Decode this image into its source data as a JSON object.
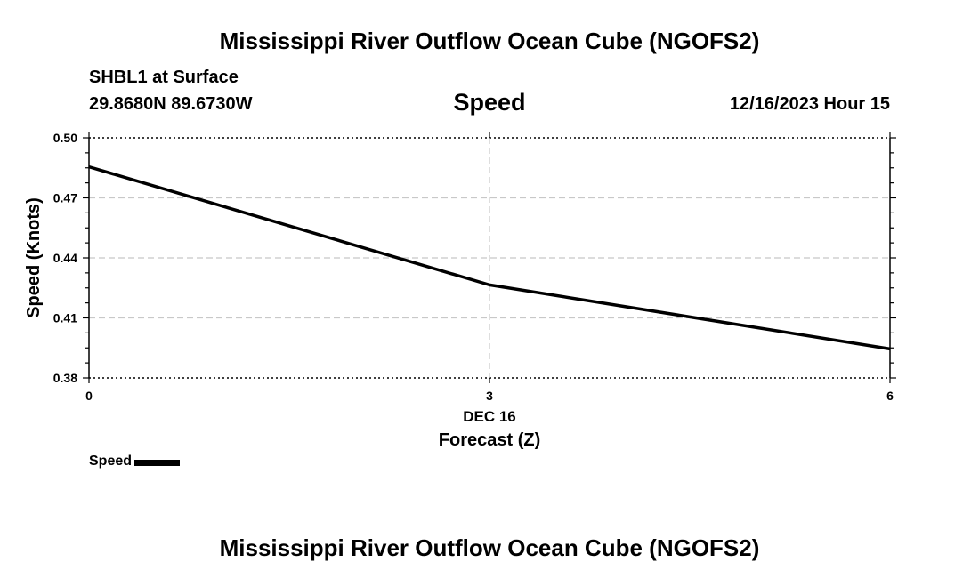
{
  "header": {
    "title": "Mississippi River Outflow Ocean Cube (NGOFS2)",
    "station": "SHBL1 at Surface",
    "coordinates": "29.8680N  89.6730W",
    "subtitle": "Speed",
    "datetime": "12/16/2023 Hour 15"
  },
  "footer": {
    "title": "Mississippi River Outflow Ocean Cube (NGOFS2)"
  },
  "legend": {
    "label": "Speed",
    "color": "#000000"
  },
  "chart_data": {
    "type": "line",
    "ylabel": "Speed (Knots)",
    "xlabel": "Forecast (Z)",
    "x_date_label": "DEC 16",
    "x": [
      0,
      3,
      6
    ],
    "x_tick_labels": [
      "0",
      "3",
      "6"
    ],
    "xlim": [
      0,
      6
    ],
    "ylim": [
      0.38,
      0.5
    ],
    "y_ticks": [
      0.38,
      0.41,
      0.44,
      0.47,
      0.5
    ],
    "y_tick_labels": [
      "0.38",
      "0.41",
      "0.44",
      "0.47",
      "0.50"
    ],
    "grid": true,
    "legend_position": "bottom-left",
    "series": [
      {
        "name": "Speed",
        "color": "#000000",
        "values": [
          0.4855,
          0.4265,
          0.3945
        ]
      }
    ]
  }
}
